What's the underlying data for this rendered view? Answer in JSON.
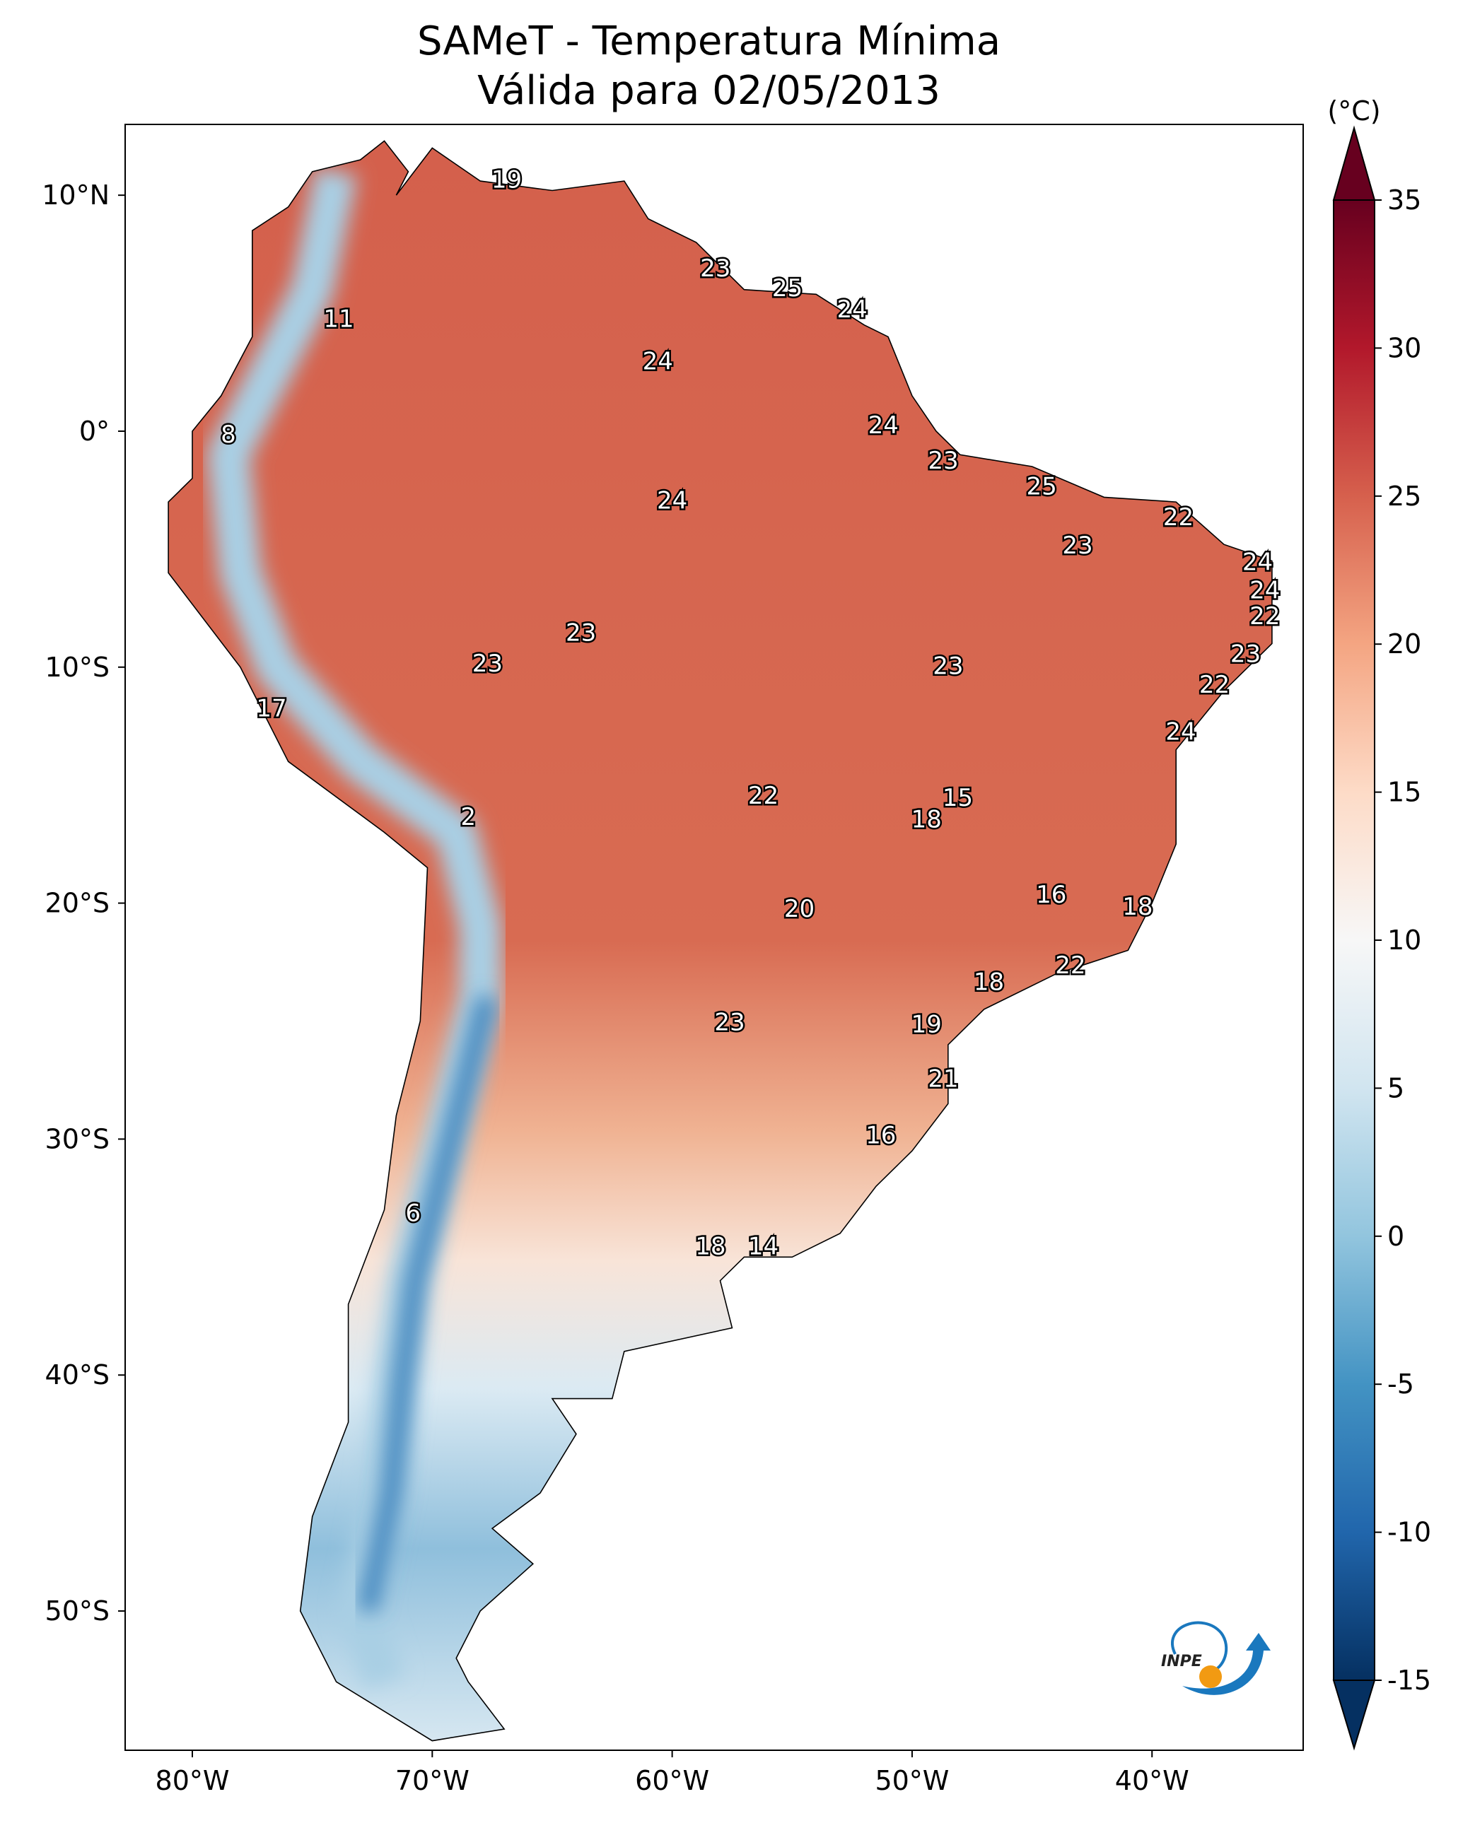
{
  "title": {
    "line1": "SAMeT - Temperatura Mínima",
    "line2": "Válida para 02/05/2013"
  },
  "map": {
    "projection": "plate-carree",
    "lon_range": [
      -82.8,
      -33.7
    ],
    "lat_range": [
      -55.9,
      13.0
    ],
    "lat_ticks": [
      {
        "value": 10,
        "label": "10°N"
      },
      {
        "value": 0,
        "label": "0°"
      },
      {
        "value": -10,
        "label": "10°S"
      },
      {
        "value": -20,
        "label": "20°S"
      },
      {
        "value": -30,
        "label": "30°S"
      },
      {
        "value": -40,
        "label": "40°S"
      },
      {
        "value": -50,
        "label": "50°S"
      }
    ],
    "lon_ticks": [
      {
        "value": -80,
        "label": "80°W"
      },
      {
        "value": -70,
        "label": "70°W"
      },
      {
        "value": -60,
        "label": "60°W"
      },
      {
        "value": -50,
        "label": "50°W"
      },
      {
        "value": -40,
        "label": "40°W"
      }
    ],
    "stations": [
      {
        "value": "19",
        "lon": -66.9,
        "lat": 10.6
      },
      {
        "value": "23",
        "lon": -58.2,
        "lat": 6.85
      },
      {
        "value": "25",
        "lon": -55.2,
        "lat": 6.0
      },
      {
        "value": "24",
        "lon": -52.5,
        "lat": 5.1
      },
      {
        "value": "24",
        "lon": -60.6,
        "lat": 2.9
      },
      {
        "value": "11",
        "lon": -73.9,
        "lat": 4.7
      },
      {
        "value": "8",
        "lon": -78.5,
        "lat": -0.2
      },
      {
        "value": "24",
        "lon": -51.2,
        "lat": 0.2
      },
      {
        "value": "23",
        "lon": -48.7,
        "lat": -1.3
      },
      {
        "value": "24",
        "lon": -60.0,
        "lat": -3.0
      },
      {
        "value": "25",
        "lon": -44.6,
        "lat": -2.4
      },
      {
        "value": "22",
        "lon": -38.9,
        "lat": -3.7
      },
      {
        "value": "23",
        "lon": -43.1,
        "lat": -4.9
      },
      {
        "value": "24",
        "lon": -35.6,
        "lat": -5.6
      },
      {
        "value": "24",
        "lon": -35.3,
        "lat": -6.8
      },
      {
        "value": "22",
        "lon": -35.3,
        "lat": -7.9
      },
      {
        "value": "23",
        "lon": -63.8,
        "lat": -8.6
      },
      {
        "value": "23",
        "lon": -67.7,
        "lat": -9.9
      },
      {
        "value": "23",
        "lon": -36.1,
        "lat": -9.5
      },
      {
        "value": "23",
        "lon": -48.5,
        "lat": -10.0
      },
      {
        "value": "22",
        "lon": -37.4,
        "lat": -10.8
      },
      {
        "value": "17",
        "lon": -76.7,
        "lat": -11.8
      },
      {
        "value": "24",
        "lon": -38.8,
        "lat": -12.8
      },
      {
        "value": "22",
        "lon": -56.2,
        "lat": -15.5
      },
      {
        "value": "15",
        "lon": -48.1,
        "lat": -15.6
      },
      {
        "value": "18",
        "lon": -49.4,
        "lat": -16.5
      },
      {
        "value": "2",
        "lon": -68.5,
        "lat": -16.4
      },
      {
        "value": "16",
        "lon": -44.2,
        "lat": -19.7
      },
      {
        "value": "18",
        "lon": -40.6,
        "lat": -20.2
      },
      {
        "value": "20",
        "lon": -54.7,
        "lat": -20.3
      },
      {
        "value": "22",
        "lon": -43.4,
        "lat": -22.7
      },
      {
        "value": "18",
        "lon": -46.8,
        "lat": -23.4
      },
      {
        "value": "23",
        "lon": -57.6,
        "lat": -25.1
      },
      {
        "value": "19",
        "lon": -49.4,
        "lat": -25.2
      },
      {
        "value": "21",
        "lon": -48.7,
        "lat": -27.5
      },
      {
        "value": "16",
        "lon": -51.3,
        "lat": -29.9
      },
      {
        "value": "6",
        "lon": -70.8,
        "lat": -33.2
      },
      {
        "value": "18",
        "lon": -58.4,
        "lat": -34.6
      },
      {
        "value": "14",
        "lon": -56.2,
        "lat": -34.6
      }
    ]
  },
  "colorbar": {
    "unit": "(°C)",
    "range": [
      -15,
      35
    ],
    "extend": "both",
    "colormap": "RdBu_r",
    "ticks": [
      {
        "value": 35,
        "label": "35"
      },
      {
        "value": 30,
        "label": "30"
      },
      {
        "value": 25,
        "label": "25"
      },
      {
        "value": 20,
        "label": "20"
      },
      {
        "value": 15,
        "label": "15"
      },
      {
        "value": 10,
        "label": "10"
      },
      {
        "value": 5,
        "label": "5"
      },
      {
        "value": 0,
        "label": "0"
      },
      {
        "value": -5,
        "label": "-5"
      },
      {
        "value": -10,
        "label": "-10"
      },
      {
        "value": -15,
        "label": "-15"
      }
    ],
    "colors": [
      "#053061",
      "#2166ac",
      "#4393c3",
      "#92c5de",
      "#d1e5f0",
      "#f7f7f7",
      "#fddbc7",
      "#f4a582",
      "#d6604d",
      "#b2182b",
      "#67001f"
    ]
  },
  "logo": {
    "text": "INPE"
  }
}
